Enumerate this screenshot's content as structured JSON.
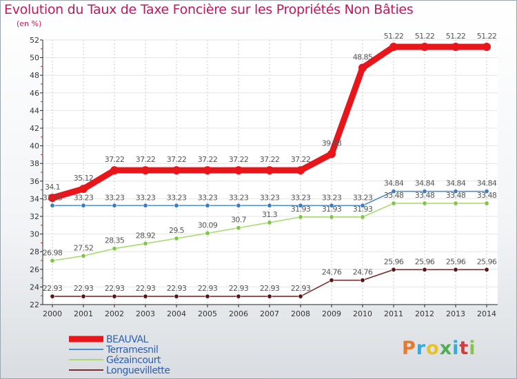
{
  "title": "Evolution du Taux de Taxe Foncière sur les Propriétés Non Bâties",
  "unit": "(en %)",
  "logo": "Proxiti",
  "chart_data": {
    "type": "line",
    "x": [
      2000,
      2001,
      2002,
      2003,
      2004,
      2005,
      2006,
      2007,
      2008,
      2009,
      2010,
      2011,
      2012,
      2013,
      2014
    ],
    "ylim": [
      22,
      52
    ],
    "yticks": [
      22,
      24,
      26,
      28,
      30,
      32,
      34,
      36,
      38,
      40,
      42,
      44,
      46,
      48,
      50,
      52
    ],
    "legend": "bottom-left",
    "series": [
      {
        "name": "BEAUVAL",
        "color": "#e8161b",
        "bold": true,
        "values": [
          34.1,
          35.12,
          37.22,
          37.22,
          37.22,
          37.22,
          37.22,
          37.22,
          37.22,
          39.08,
          48.85,
          51.22,
          51.22,
          51.22,
          51.22
        ],
        "labels": [
          "34.1",
          "35.12",
          "37.22",
          "37.22",
          "37.22",
          "37.22",
          "37.22",
          "37.22",
          "37.22",
          "39.08",
          "48.85",
          "51.22",
          "51.22",
          "51.22",
          "51.22"
        ]
      },
      {
        "name": "Terramesnil",
        "color": "#4d8fc9",
        "dot": "#3c7bbf",
        "values": [
          33.23,
          33.23,
          33.23,
          33.23,
          33.23,
          33.23,
          33.23,
          33.23,
          33.23,
          33.23,
          33.23,
          34.84,
          34.84,
          34.84,
          34.84
        ],
        "labels": [
          "33.23",
          "33.23",
          "33.23",
          "33.23",
          "33.23",
          "33.23",
          "33.23",
          "33.23",
          "33.23",
          "33.23",
          "33.23",
          "34.84",
          "34.84",
          "34.84",
          "34.84"
        ]
      },
      {
        "name": "Gézaincourt",
        "color": "#a6dc6d",
        "dot": "#7fc646",
        "values": [
          26.98,
          27.52,
          28.35,
          28.92,
          29.5,
          30.09,
          30.7,
          31.3,
          31.93,
          31.93,
          31.93,
          33.48,
          33.48,
          33.48,
          33.48
        ],
        "labels": [
          "26.98",
          "27.52",
          "28.35",
          "28.92",
          "29.5",
          "30.09",
          "30.7",
          "31.3",
          "31.93",
          "31.93",
          "31.93",
          "33.48",
          "33.48",
          "33.48",
          "33.48"
        ]
      },
      {
        "name": "Longuevillette",
        "color": "#7a2c2c",
        "dot": "#5a1616",
        "values": [
          22.93,
          22.93,
          22.93,
          22.93,
          22.93,
          22.93,
          22.93,
          22.93,
          22.93,
          24.76,
          24.76,
          25.96,
          25.96,
          25.96,
          25.96
        ],
        "labels": [
          "22.93",
          "22.93",
          "22.93",
          "22.93",
          "22.93",
          "22.93",
          "22.93",
          "22.93",
          "22.93",
          "24.76",
          "24.76",
          "25.96",
          "25.96",
          "25.96",
          "25.96"
        ]
      }
    ]
  }
}
